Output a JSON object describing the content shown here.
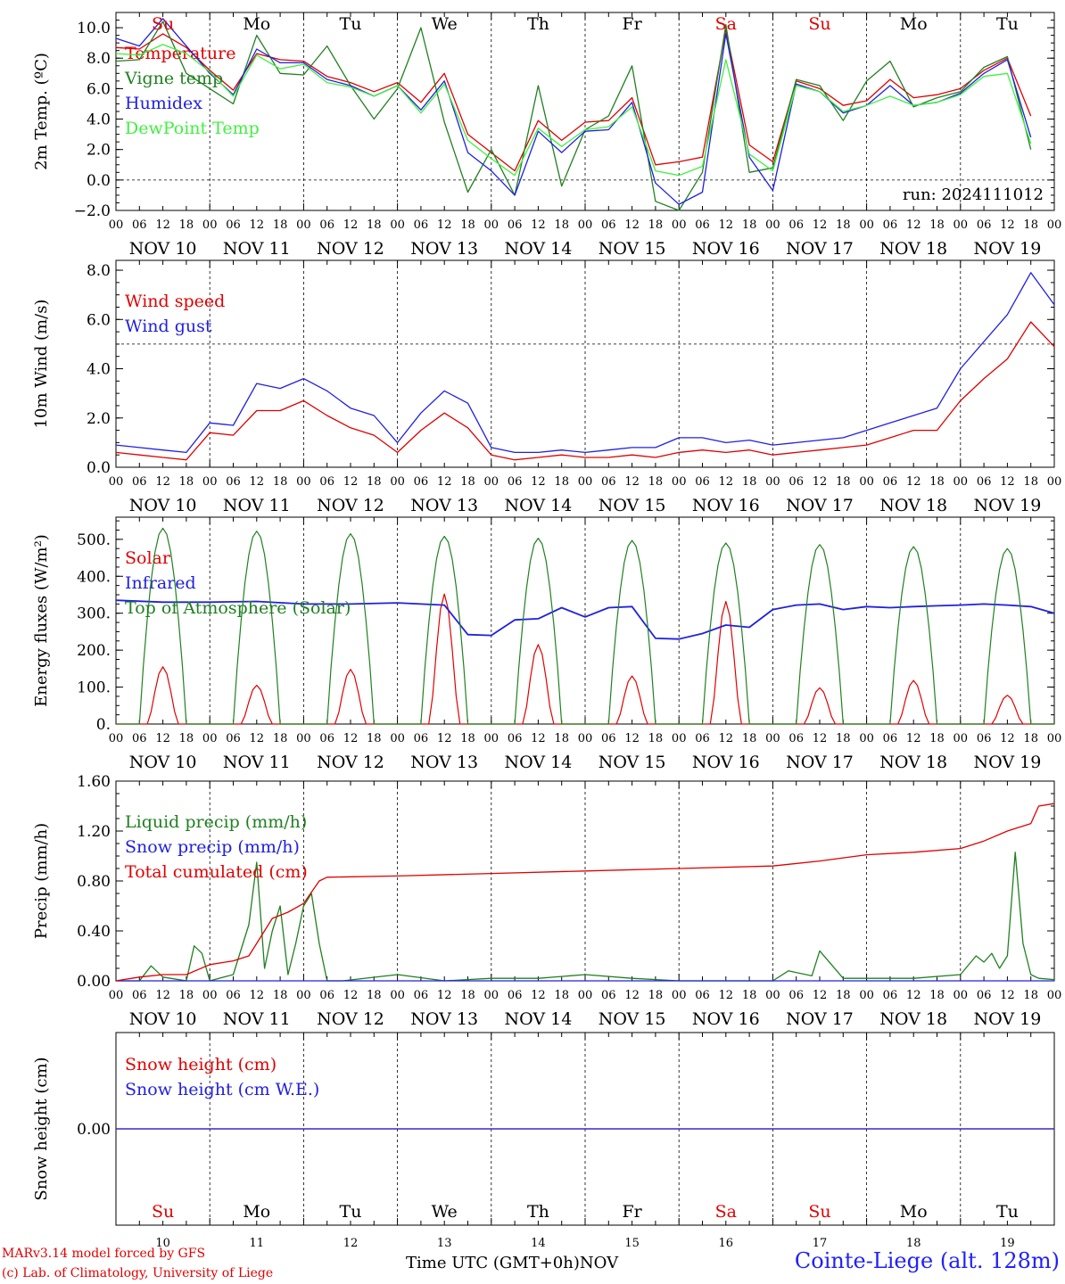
{
  "days": [
    "NOV 10",
    "NOV 11",
    "NOV 12",
    "NOV 13",
    "NOV 14",
    "NOV 15",
    "NOV 16",
    "NOV 17",
    "NOV 18",
    "NOV 19"
  ],
  "hour_ticks": [
    "00",
    "06",
    "12",
    "18"
  ],
  "weekdays": [
    {
      "label": "Su",
      "color": "#e00000"
    },
    {
      "label": "Mo",
      "color": "#000000"
    },
    {
      "label": "Tu",
      "color": "#000000"
    },
    {
      "label": "We",
      "color": "#000000"
    },
    {
      "label": "Th",
      "color": "#000000"
    },
    {
      "label": "Fr",
      "color": "#000000"
    },
    {
      "label": "Sa",
      "color": "#e00000"
    },
    {
      "label": "Su",
      "color": "#e00000"
    },
    {
      "label": "Mo",
      "color": "#000000"
    },
    {
      "label": "Tu",
      "color": "#000000"
    }
  ],
  "day_numbers": [
    "10",
    "11",
    "12",
    "13",
    "14",
    "15",
    "16",
    "17",
    "18",
    "19"
  ],
  "footer": {
    "model": "MARv3.14 model forced by GFS",
    "copyright": "(c) Lab. of Climatology, University of Liege",
    "xaxis_title": "Time UTC (GMT+0h)",
    "month": "NOV",
    "station": "Cointe-Liege (alt. 128m)"
  },
  "chart_data": [
    {
      "type": "line",
      "ylabel": "2m Temp. (ºC)",
      "ylim": [
        -2,
        11
      ],
      "yticks": [
        -2,
        0,
        2,
        4,
        6,
        8,
        10
      ],
      "ytick_labels": [
        "−2.0",
        "0.0",
        "2.0",
        "4.0",
        "6.0",
        "8.0",
        "10.0"
      ],
      "hline": 0,
      "annotation": "run: 2024111012",
      "x_unit": "hours since NOV 10 00 UTC",
      "series": [
        {
          "name": "Temperature",
          "color": "#e00000",
          "x": [
            0,
            6,
            12,
            18,
            24,
            30,
            36,
            42,
            48,
            54,
            60,
            66,
            72,
            78,
            84,
            90,
            96,
            102,
            108,
            114,
            120,
            126,
            132,
            138,
            144,
            150,
            156,
            162,
            168,
            174,
            180,
            186,
            192,
            198,
            204,
            210,
            216,
            222,
            228,
            234
          ],
          "y": [
            8.7,
            8.6,
            9.6,
            8.7,
            7.2,
            5.9,
            8.3,
            7.9,
            7.8,
            6.8,
            6.4,
            5.8,
            6.4,
            5.1,
            7.0,
            3.0,
            1.8,
            0.6,
            3.9,
            2.6,
            3.8,
            3.9,
            5.4,
            1.0,
            1.2,
            1.5,
            9.9,
            2.3,
            1.2,
            6.5,
            6.0,
            4.9,
            5.2,
            6.6,
            5.4,
            5.6,
            6.0,
            7.2,
            8.0,
            4.2
          ]
        },
        {
          "name": "Vigne temp",
          "color": "#208020",
          "x": [
            0,
            6,
            12,
            18,
            24,
            30,
            36,
            42,
            48,
            54,
            60,
            66,
            72,
            78,
            84,
            90,
            96,
            102,
            108,
            114,
            120,
            126,
            132,
            138,
            144,
            150,
            156,
            162,
            168,
            174,
            180,
            186,
            192,
            198,
            204,
            210,
            216,
            222,
            228,
            234
          ],
          "y": [
            7.8,
            7.9,
            10.4,
            7.0,
            6.0,
            5.0,
            9.5,
            7.0,
            6.9,
            8.8,
            6.2,
            4.0,
            6.0,
            10.0,
            3.8,
            -0.8,
            2.0,
            -1.0,
            6.2,
            -0.4,
            3.3,
            4.2,
            7.5,
            -1.4,
            -2.0,
            0.5,
            10.2,
            0.5,
            0.8,
            6.6,
            6.2,
            3.9,
            6.5,
            7.8,
            4.8,
            5.4,
            5.8,
            7.4,
            8.1,
            2.0
          ]
        },
        {
          "name": "Humidex",
          "color": "#2020e0",
          "x": [
            0,
            6,
            12,
            18,
            24,
            30,
            36,
            42,
            48,
            54,
            60,
            66,
            72,
            78,
            84,
            90,
            96,
            102,
            108,
            114,
            120,
            126,
            132,
            138,
            144,
            150,
            156,
            162,
            168,
            174,
            180,
            186,
            192,
            198,
            204,
            210,
            216,
            222,
            228,
            234
          ],
          "y": [
            9.3,
            8.8,
            10.6,
            8.8,
            7.0,
            5.6,
            8.6,
            7.7,
            7.7,
            6.6,
            6.2,
            5.5,
            6.2,
            4.6,
            6.5,
            1.8,
            0.6,
            -1.0,
            3.2,
            1.8,
            3.2,
            3.3,
            5.1,
            -0.2,
            -1.6,
            -0.8,
            9.6,
            1.5,
            -0.7,
            6.3,
            5.8,
            4.4,
            4.9,
            6.2,
            4.9,
            5.1,
            5.7,
            7.0,
            7.9,
            2.8
          ]
        },
        {
          "name": "DewPoint Temp",
          "color": "#40f040",
          "x": [
            0,
            6,
            12,
            18,
            24,
            30,
            36,
            42,
            48,
            54,
            60,
            66,
            72,
            78,
            84,
            90,
            96,
            102,
            108,
            114,
            120,
            126,
            132,
            138,
            144,
            150,
            156,
            162,
            168,
            174,
            180,
            186,
            192,
            198,
            204,
            210,
            216,
            222,
            228,
            234
          ],
          "y": [
            8.3,
            8.2,
            8.9,
            8.3,
            7.1,
            5.5,
            8.2,
            7.3,
            7.6,
            6.4,
            6.1,
            5.5,
            6.2,
            4.4,
            6.3,
            2.6,
            1.4,
            0.3,
            3.4,
            2.2,
            3.3,
            3.5,
            4.8,
            0.6,
            0.3,
            0.9,
            7.9,
            1.7,
            0.6,
            6.2,
            5.8,
            4.5,
            4.9,
            5.5,
            4.9,
            5.1,
            5.6,
            6.8,
            7.0,
            2.4
          ]
        }
      ]
    },
    {
      "type": "line",
      "ylabel": "10m Wind (m/s)",
      "ylim": [
        0,
        8.4
      ],
      "yticks": [
        0,
        2,
        4,
        6,
        8
      ],
      "ytick_labels": [
        "0.0",
        "2.0",
        "4.0",
        "6.0",
        "8.0"
      ],
      "hline": 5,
      "x_unit": "hours since NOV 10 00 UTC",
      "series": [
        {
          "name": "Wind speed",
          "color": "#e00000",
          "x": [
            0,
            6,
            12,
            18,
            24,
            30,
            36,
            42,
            48,
            54,
            60,
            66,
            72,
            78,
            84,
            90,
            96,
            102,
            108,
            114,
            120,
            126,
            132,
            138,
            144,
            150,
            156,
            162,
            168,
            174,
            180,
            186,
            192,
            198,
            204,
            210,
            216,
            222,
            228,
            234,
            240
          ],
          "y": [
            0.6,
            0.5,
            0.4,
            0.3,
            1.4,
            1.3,
            2.3,
            2.3,
            2.7,
            2.1,
            1.6,
            1.3,
            0.6,
            1.5,
            2.2,
            1.6,
            0.5,
            0.3,
            0.4,
            0.5,
            0.4,
            0.4,
            0.5,
            0.4,
            0.6,
            0.7,
            0.6,
            0.7,
            0.5,
            0.6,
            0.7,
            0.8,
            0.9,
            1.2,
            1.5,
            1.5,
            2.7,
            3.6,
            4.4,
            5.9,
            4.9
          ]
        },
        {
          "name": "Wind gust",
          "color": "#2020e0",
          "x": [
            0,
            6,
            12,
            18,
            24,
            30,
            36,
            42,
            48,
            54,
            60,
            66,
            72,
            78,
            84,
            90,
            96,
            102,
            108,
            114,
            120,
            126,
            132,
            138,
            144,
            150,
            156,
            162,
            168,
            174,
            180,
            186,
            192,
            198,
            204,
            210,
            216,
            222,
            228,
            234,
            240
          ],
          "y": [
            0.9,
            0.8,
            0.7,
            0.6,
            1.8,
            1.7,
            3.4,
            3.2,
            3.6,
            3.1,
            2.4,
            2.1,
            1.0,
            2.2,
            3.1,
            2.6,
            0.8,
            0.6,
            0.6,
            0.7,
            0.6,
            0.7,
            0.8,
            0.8,
            1.2,
            1.2,
            1.0,
            1.1,
            0.9,
            1.0,
            1.1,
            1.2,
            1.5,
            1.8,
            2.1,
            2.4,
            4.0,
            5.1,
            6.2,
            7.9,
            6.6
          ]
        }
      ]
    },
    {
      "type": "line",
      "ylabel": "Energy fluxes (W/m²)",
      "ylim": [
        0,
        560
      ],
      "yticks": [
        0,
        100,
        200,
        300,
        400,
        500
      ],
      "ytick_labels": [
        "0.",
        "100.",
        "200.",
        "300.",
        "400.",
        "500."
      ],
      "x_unit": "hours since NOV 10 00 UTC",
      "series": [
        {
          "name": "Solar",
          "color": "#e00000",
          "peaks": [
            155,
            105,
            148,
            352,
            215,
            130,
            332,
            98,
            118,
            78
          ]
        },
        {
          "name": "Infrared",
          "color": "#2020e0",
          "x": [
            0,
            12,
            24,
            36,
            48,
            60,
            72,
            84,
            90,
            96,
            102,
            108,
            114,
            120,
            126,
            132,
            138,
            144,
            150,
            156,
            162,
            168,
            174,
            180,
            186,
            192,
            198,
            204,
            210,
            216,
            222,
            228,
            234,
            240
          ],
          "y": [
            335,
            330,
            330,
            332,
            325,
            325,
            328,
            322,
            242,
            240,
            282,
            285,
            315,
            290,
            315,
            318,
            232,
            230,
            245,
            268,
            262,
            310,
            322,
            325,
            310,
            318,
            315,
            318,
            320,
            322,
            325,
            322,
            318,
            300
          ]
        },
        {
          "name": "Top of Atmosphere (Solar)",
          "color": "#208020",
          "peaks": [
            530,
            522,
            515,
            508,
            503,
            497,
            490,
            486,
            480,
            475
          ]
        }
      ]
    },
    {
      "type": "line",
      "ylabel": "Precip (mm/h)",
      "ylim": [
        0,
        1.6
      ],
      "yticks": [
        0,
        0.4,
        0.8,
        1.2,
        1.6
      ],
      "ytick_labels": [
        "0.00",
        "0.40",
        "0.80",
        "1.20",
        "1.60"
      ],
      "x_unit": "hours since NOV 10 00 UTC",
      "series": [
        {
          "name": "Liquid precip (mm/h)",
          "color": "#208020",
          "x": [
            0,
            6,
            9,
            12,
            18,
            20,
            22,
            24,
            30,
            34,
            36,
            38,
            40,
            42,
            44,
            46,
            48,
            50,
            52,
            54,
            58,
            72,
            84,
            96,
            108,
            120,
            132,
            144,
            156,
            168,
            172,
            178,
            180,
            186,
            192,
            204,
            216,
            220,
            222,
            224,
            226,
            228,
            230,
            232,
            234,
            236,
            240
          ],
          "y": [
            0,
            0,
            0.12,
            0.03,
            0,
            0.28,
            0.22,
            0,
            0.05,
            0.45,
            0.95,
            0.1,
            0.4,
            0.6,
            0.05,
            0.3,
            0.6,
            0.7,
            0.3,
            0,
            0,
            0.05,
            0,
            0.02,
            0.02,
            0.05,
            0.02,
            0,
            0,
            0,
            0.08,
            0.04,
            0.24,
            0.02,
            0.02,
            0.02,
            0.05,
            0.2,
            0.15,
            0.22,
            0.1,
            0.2,
            1.03,
            0.3,
            0.05,
            0.02,
            0.01
          ]
        },
        {
          "name": "Snow precip (mm/h)",
          "color": "#2020e0",
          "x": [
            0,
            240
          ],
          "y": [
            0,
            0
          ]
        },
        {
          "name": "Total cumulated (cm)",
          "color": "#e00000",
          "x": [
            0,
            6,
            12,
            18,
            24,
            30,
            34,
            36,
            40,
            44,
            48,
            52,
            54,
            72,
            96,
            120,
            144,
            168,
            180,
            192,
            204,
            216,
            222,
            228,
            234,
            236,
            240
          ],
          "y": [
            0,
            0.03,
            0.05,
            0.05,
            0.13,
            0.16,
            0.2,
            0.3,
            0.5,
            0.55,
            0.62,
            0.8,
            0.83,
            0.84,
            0.86,
            0.88,
            0.9,
            0.92,
            0.96,
            1.01,
            1.03,
            1.06,
            1.12,
            1.2,
            1.26,
            1.4,
            1.42
          ]
        }
      ]
    },
    {
      "type": "line",
      "ylabel": "Snow height (cm)",
      "ylim": [
        -1,
        1
      ],
      "yticks": [
        0
      ],
      "ytick_labels": [
        "0.00"
      ],
      "x_unit": "hours since NOV 10 00 UTC",
      "series": [
        {
          "name": "Snow height (cm)",
          "color": "#e00000",
          "x": [
            0,
            240
          ],
          "y": [
            0,
            0
          ]
        },
        {
          "name": "Snow height (cm W.E.)",
          "color": "#2020e0",
          "x": [
            0,
            240
          ],
          "y": [
            0,
            0
          ]
        }
      ]
    }
  ]
}
